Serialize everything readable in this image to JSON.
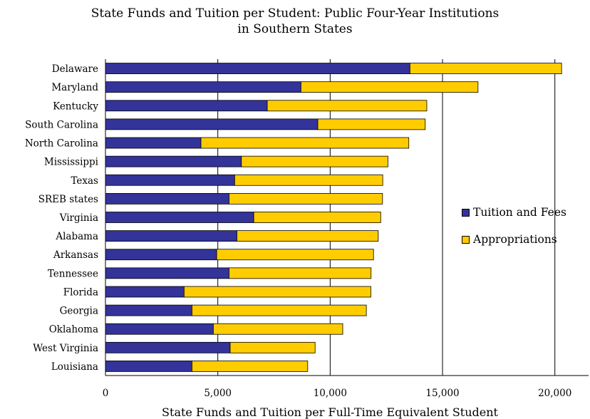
{
  "chart_data": {
    "type": "bar",
    "orientation": "horizontal",
    "stacked": true,
    "title": "State Funds and Tuition per Student:  Public Four-Year Institutions in Southern States",
    "title_lines": [
      "State Funds and Tuition per Student:  Public Four-Year Institutions",
      "in Southern States"
    ],
    "xlabel": "State Funds and Tuition per Full-Time Equivalent Student",
    "ylabel": "",
    "xlim": [
      0,
      21500
    ],
    "xticks": [
      0,
      5000,
      10000,
      15000,
      20000
    ],
    "xtick_labels": [
      "0",
      "5,000",
      "10,000",
      "15,000",
      "20,000"
    ],
    "grid": "vertical major gridlines",
    "legend_position": "right",
    "categories": [
      "Delaware",
      "Maryland",
      "Kentucky",
      "South Carolina",
      "North Carolina",
      "Mississippi",
      "Texas",
      "SREB states",
      "Virginia",
      "Alabama",
      "Arkansas",
      "Tennessee",
      "Florida",
      "Georgia",
      "Oklahoma",
      "West Virginia",
      "Louisiana"
    ],
    "series": [
      {
        "name": "Tuition and Fees",
        "color": "#33339a",
        "values": [
          13550,
          8700,
          7200,
          9450,
          4250,
          6050,
          5750,
          5500,
          6600,
          5850,
          4950,
          5500,
          3500,
          3850,
          4800,
          5550,
          3850
        ]
      },
      {
        "name": "Appropriations",
        "color": "#ffcc00",
        "values": [
          6750,
          7880,
          7100,
          4780,
          9250,
          6520,
          6590,
          6830,
          5650,
          6290,
          6980,
          6320,
          8310,
          7760,
          5760,
          3780,
          5150
        ]
      }
    ]
  },
  "colors": {
    "tuition": "#33339a",
    "appropriations": "#ffcc00",
    "grid": "#000000"
  }
}
